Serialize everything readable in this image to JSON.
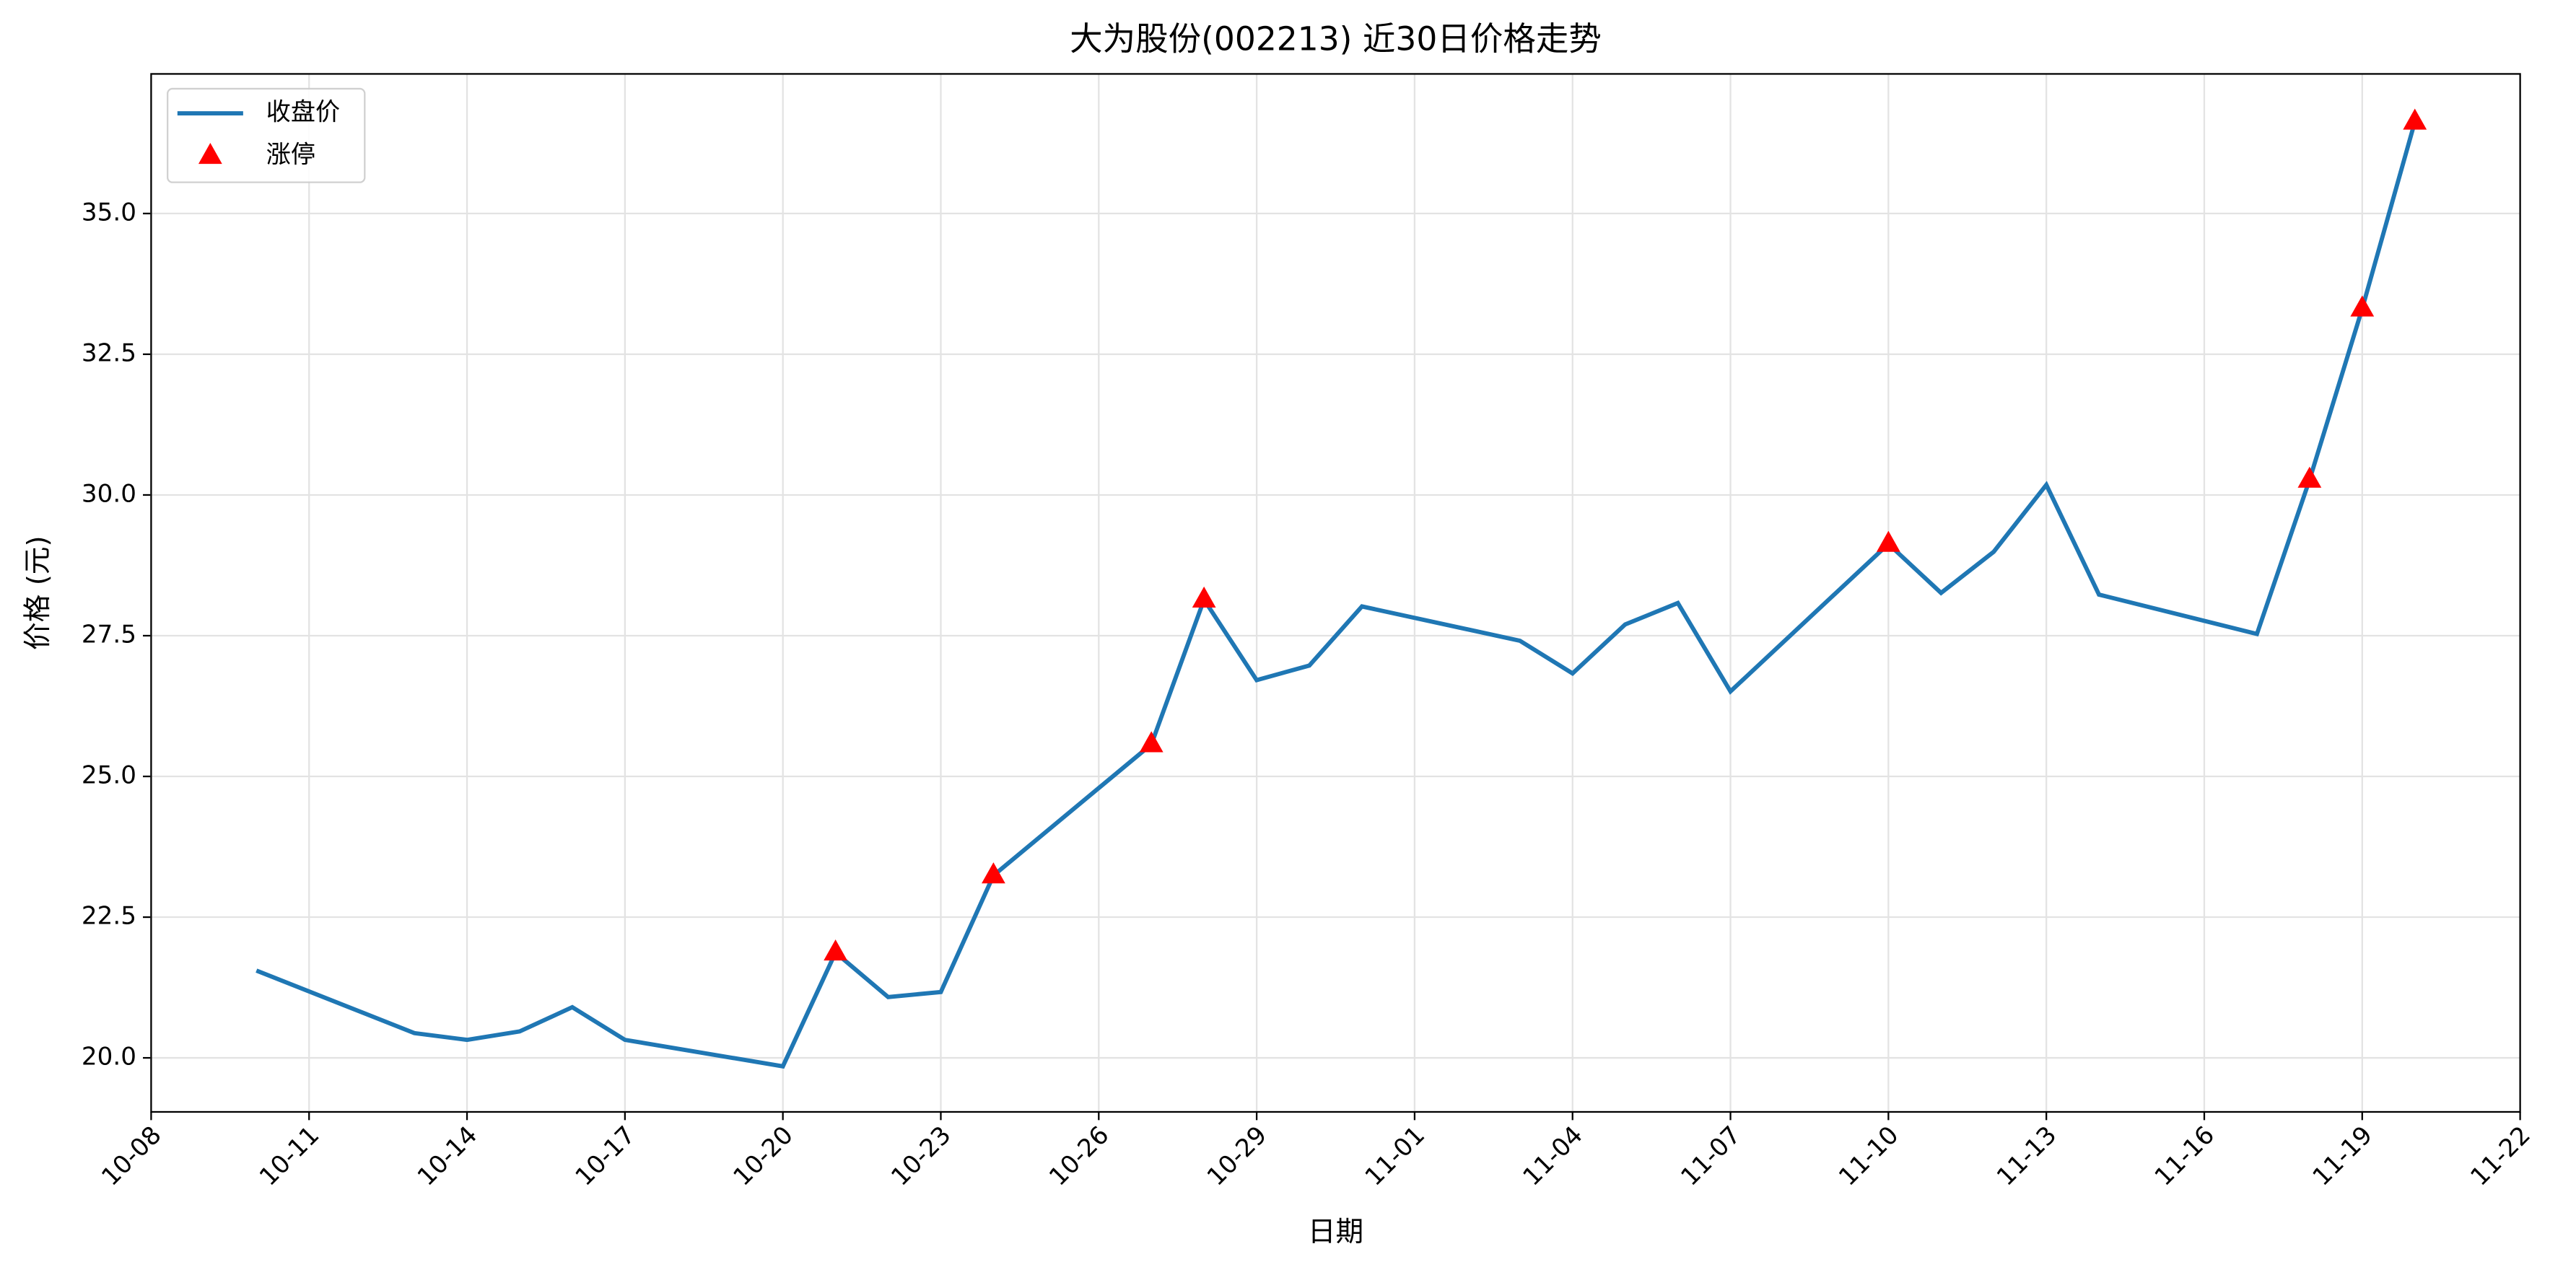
{
  "chart_data": {
    "type": "line",
    "title": "大为股份(002213) 近30日价格走势",
    "x_label": "日期",
    "y_label": "价格 (元)",
    "x": [
      "10-10",
      "10-13",
      "10-14",
      "10-15",
      "10-16",
      "10-17",
      "10-20",
      "10-21",
      "10-22",
      "10-23",
      "10-24",
      "10-27",
      "10-28",
      "10-29",
      "10-30",
      "10-31",
      "11-03",
      "11-04",
      "11-05",
      "11-06",
      "11-07",
      "11-10",
      "11-11",
      "11-12",
      "11-13",
      "11-14",
      "11-17",
      "11-18",
      "11-19",
      "11-20"
    ],
    "series": [
      {
        "name": "收盘价",
        "color": "#1f77b4",
        "values": [
          21.55,
          20.44,
          20.32,
          20.47,
          20.9,
          20.32,
          19.85,
          21.87,
          21.08,
          21.17,
          23.24,
          25.57,
          28.14,
          26.71,
          26.97,
          28.02,
          27.41,
          26.83,
          27.7,
          28.08,
          26.51,
          29.13,
          28.26,
          28.99,
          30.18,
          28.23,
          27.53,
          30.27,
          33.31,
          36.63
        ]
      },
      {
        "name": "涨停",
        "color": "#ff0000",
        "marker": "triangle",
        "x": [
          "10-21",
          "10-24",
          "10-27",
          "10-28",
          "11-10",
          "11-18",
          "11-19",
          "11-20"
        ],
        "values": [
          21.87,
          23.24,
          25.57,
          28.14,
          29.13,
          30.27,
          33.31,
          36.63
        ]
      }
    ],
    "xlim": [
      "10-08",
      "11-22"
    ],
    "xticks": [
      "10-08",
      "10-11",
      "10-14",
      "10-17",
      "10-20",
      "10-23",
      "10-26",
      "10-29",
      "11-01",
      "11-04",
      "11-07",
      "11-10",
      "11-13",
      "11-16",
      "11-19",
      "11-22"
    ],
    "ylim": [
      19.04,
      37.48
    ],
    "yticks": [
      {
        "value": 20,
        "label": "20.0"
      },
      22.5,
      {
        "value": 25,
        "label": "25.0"
      },
      27.5,
      {
        "value": 30,
        "label": "30.0"
      },
      32.5,
      {
        "value": 35,
        "label": "35.0"
      }
    ],
    "grid": true,
    "legend": "upper left"
  }
}
